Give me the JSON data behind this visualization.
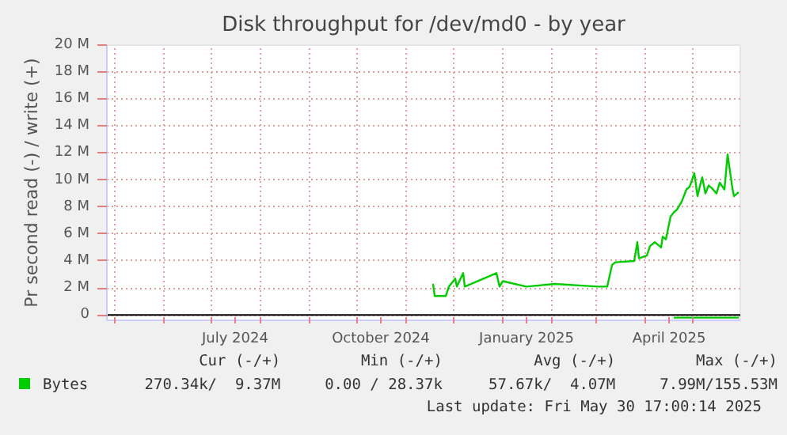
{
  "chart_data": {
    "type": "line",
    "title": "Disk throughput for /dev/md0 - by year",
    "ylabel": "Pr second read (-) / write (+)",
    "xlim": [
      "2024-04-26",
      "2025-05-31"
    ],
    "xticks": [
      {
        "value": "2024-05-01",
        "label": null
      },
      {
        "value": "2024-06-01",
        "label": null
      },
      {
        "value": "2024-07-01",
        "label": null
      },
      {
        "value": "2024-07-16",
        "label": "July 2024"
      },
      {
        "value": "2024-08-01",
        "label": null
      },
      {
        "value": "2024-09-01",
        "label": null
      },
      {
        "value": "2024-10-01",
        "label": null
      },
      {
        "value": "2024-10-16",
        "label": "October 2024"
      },
      {
        "value": "2024-11-01",
        "label": null
      },
      {
        "value": "2024-12-01",
        "label": null
      },
      {
        "value": "2025-01-01",
        "label": null
      },
      {
        "value": "2025-01-16",
        "label": "January 2025"
      },
      {
        "value": "2025-02-01",
        "label": null
      },
      {
        "value": "2025-03-01",
        "label": null
      },
      {
        "value": "2025-04-01",
        "label": null
      },
      {
        "value": "2025-04-16",
        "label": "April 2025"
      },
      {
        "value": "2025-05-01",
        "label": null
      }
    ],
    "ylim": [
      -0.4,
      20
    ],
    "yticks": [
      0,
      {
        "value": 2,
        "label": "2 M"
      },
      {
        "value": 4,
        "label": "4 M"
      },
      {
        "value": 6,
        "label": "6 M"
      },
      {
        "value": 8,
        "label": "8 M"
      },
      {
        "value": 10,
        "label": "10 M"
      },
      {
        "value": 12,
        "label": "12 M"
      },
      {
        "value": 14,
        "label": "14 M"
      },
      {
        "value": 16,
        "label": "16 M"
      },
      {
        "value": 18,
        "label": "18 M"
      },
      {
        "value": 20,
        "label": "20 M"
      }
    ],
    "grid": true,
    "legend": "bottom left",
    "series": [
      {
        "name": "Bytes",
        "color": "#00cc00",
        "x": [
          "2024-11-18",
          "2024-11-19",
          "2024-11-26",
          "2024-11-28",
          "2024-12-02",
          "2024-12-03",
          "2024-12-07",
          "2024-12-08",
          "2024-12-28",
          "2024-12-30",
          "2025-01-01",
          "2025-01-16",
          "2025-02-03",
          "2025-03-02",
          "2025-03-08",
          "2025-03-11",
          "2025-03-13",
          "2025-03-25",
          "2025-03-27",
          "2025-03-28",
          "2025-04-02",
          "2025-04-04",
          "2025-04-07",
          "2025-04-11",
          "2025-04-12",
          "2025-04-14",
          "2025-04-17",
          "2025-04-19",
          "2025-04-21",
          "2025-04-24",
          "2025-04-27",
          "2025-04-29",
          "2025-05-02",
          "2025-05-04",
          "2025-05-06",
          "2025-05-07",
          "2025-05-09",
          "2025-05-11",
          "2025-05-13",
          "2025-05-16",
          "2025-05-18",
          "2025-05-21",
          "2025-05-23",
          "2025-05-26",
          "2025-05-27",
          "2025-05-30"
        ],
        "values": [
          2.3,
          1.4,
          1.4,
          2.1,
          2.7,
          2.1,
          3.1,
          2.1,
          3.1,
          2.1,
          2.5,
          2.1,
          2.3,
          2.1,
          2.1,
          3.7,
          3.9,
          4.0,
          5.4,
          4.2,
          4.4,
          5.1,
          5.4,
          5.0,
          5.8,
          5.6,
          7.3,
          7.6,
          7.8,
          8.4,
          9.3,
          9.5,
          10.5,
          8.8,
          9.8,
          10.2,
          9.0,
          9.6,
          9.4,
          9.0,
          9.8,
          9.3,
          11.9,
          9.4,
          8.8,
          9.1
        ]
      },
      {
        "color": "#00cc00",
        "x": [
          "2025-04-19",
          "2025-05-30"
        ],
        "values": [
          -0.2,
          -0.2
        ]
      }
    ],
    "annotations": [
      "Cur (-/+)",
      "Min (-/+)",
      "Avg (-/+)",
      "Max (-/+)",
      "270.34k/  9.37M",
      "0.00 / 28.37k",
      "57.67k/  4.07M",
      "7.99M/155.53M",
      "Last update: Fri May 30 17:00:14 2025"
    ]
  }
}
